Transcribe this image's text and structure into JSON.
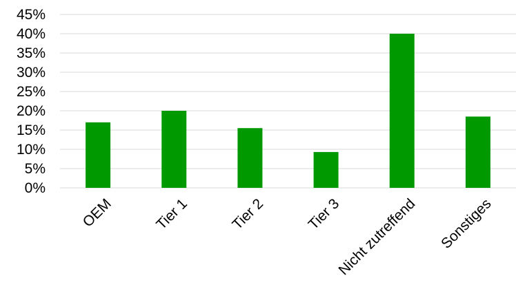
{
  "chart_data": {
    "type": "bar",
    "categories": [
      "OEM",
      "Tier 1",
      "Tier 2",
      "Tier 3",
      "Nicht zutreffend",
      "Sonstiges"
    ],
    "values": [
      17,
      20,
      15.5,
      9.3,
      40,
      18.5
    ],
    "ylim": [
      0,
      45
    ],
    "ytick_step": 5,
    "ytick_labels": [
      "0%",
      "5%",
      "10%",
      "15%",
      "20%",
      "25%",
      "30%",
      "35%",
      "40%",
      "45%"
    ],
    "unit": "%",
    "grid": true,
    "bar_color": "#009900",
    "grid_color": "#d9d9d9",
    "title": "",
    "xlabel": "",
    "ylabel": ""
  }
}
